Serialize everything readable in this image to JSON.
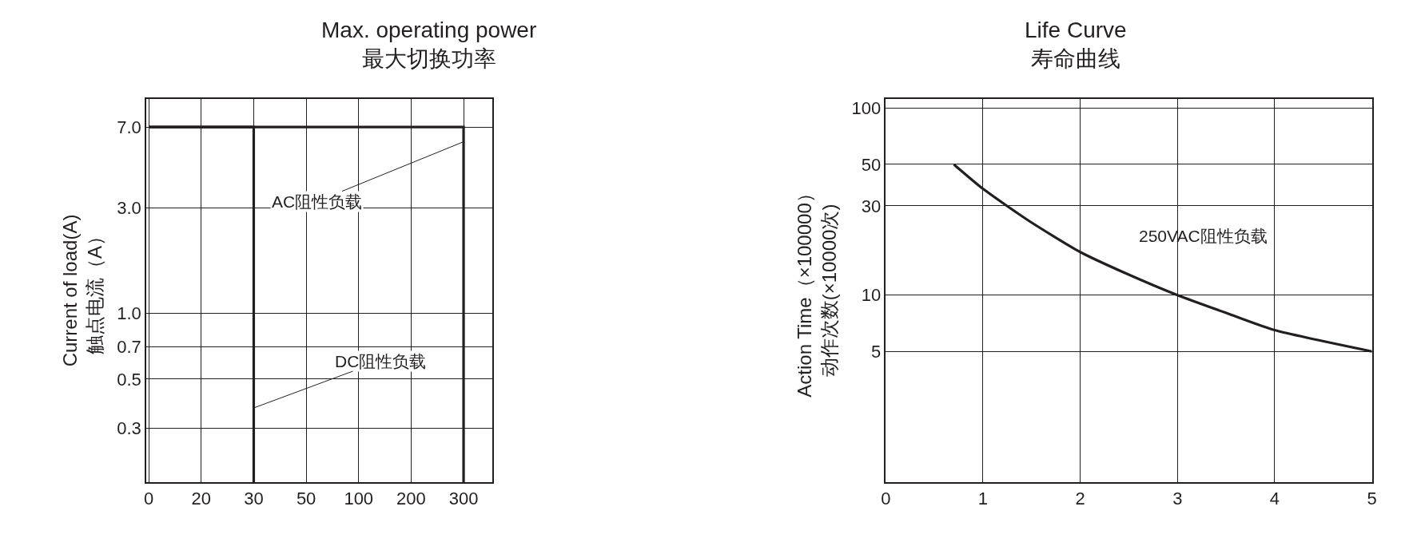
{
  "chart_data": [
    {
      "type": "line",
      "title": "Max. operating power\n最大切换功率",
      "ylabel": "Current of load(A)\n触点电流（A）",
      "categories": [
        "0",
        "20",
        "30",
        "50",
        "100",
        "200",
        "300"
      ],
      "series": [
        {
          "color": "#231f20",
          "x": [
            "0",
            "30",
            "30"
          ],
          "values": [
            7,
            7,
            0.17
          ]
        },
        {
          "color": "#231f20",
          "x": [
            "0",
            "300",
            "300"
          ],
          "values": [
            7,
            7,
            0.17
          ]
        }
      ],
      "log": "y",
      "ylim": [
        0.17,
        9.4
      ],
      "yticks": [
        0.3,
        0.5,
        0.7,
        {
          "value": 1,
          "label": "1.0"
        },
        {
          "value": 3,
          "label": "3.0"
        },
        {
          "value": 7,
          "label": "7.0"
        }
      ],
      "grid": true,
      "legend": false,
      "line_style": "solid",
      "marker": "none",
      "annotations": [
        {
          "text": "AC阻性负载",
          "x": "300",
          "y": 6
        },
        {
          "text": "DC阻性负载",
          "x": "30",
          "y": 0.37
        }
      ]
    },
    {
      "type": "line",
      "title": "Life Curve\n寿命曲线",
      "ylabel": [
        "Action Time（×100000）",
        "动作次数(×10000次)"
      ],
      "series": [
        {
          "name": "250VAC阻性负载",
          "color": "#231f20",
          "x": [
            0.7,
            1,
            1.47,
            2,
            2.48,
            3,
            3.54,
            4,
            5
          ],
          "values": [
            50,
            37,
            25,
            17,
            13,
            10,
            7.9,
            6.5,
            5
          ]
        }
      ],
      "log": "y",
      "xlim": [
        0,
        5
      ],
      "xticks": [
        0,
        1,
        2,
        3,
        4,
        5
      ],
      "ylim": [
        1,
        112
      ],
      "yticks": [
        5,
        10,
        30,
        50,
        100
      ],
      "grid": true,
      "legend": false,
      "line_style": "solid",
      "marker": "none"
    }
  ]
}
